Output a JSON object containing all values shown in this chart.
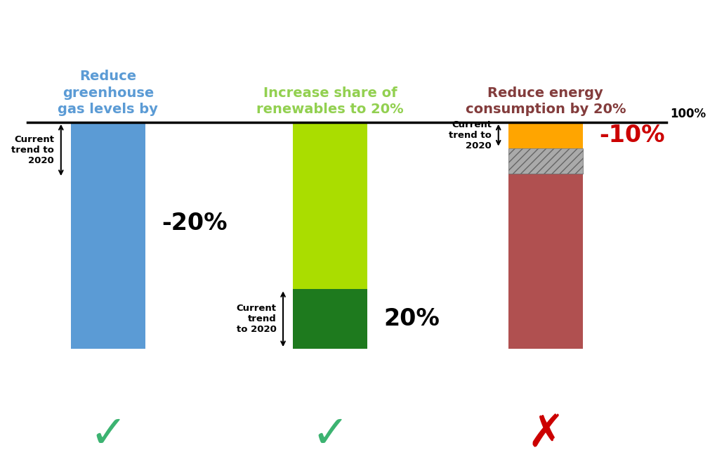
{
  "title1": "Reduce\ngreenhouse\ngas levels by",
  "title2": "Increase share of\nrenewables to 20%",
  "title3": "Reduce energy\nconsumption by 20%",
  "title1_color": "#5B9BD5",
  "title2_color": "#92D050",
  "title3_color": "#833C3C",
  "bar1_color": "#5B9BD5",
  "bar2_light_color": "#AADD00",
  "bar2_dark_color": "#1E7A1E",
  "bar3_main_color": "#B05050",
  "bar3_orange_color": "#FFA500",
  "bar3_hatch_color": "#B0B0B0",
  "label1": "-20%",
  "label2": "20%",
  "label3": "-10%",
  "label3_color": "#CC0000",
  "check_color": "#3CB371",
  "x_color": "#CC0000",
  "background_color": "#FFFFFF"
}
